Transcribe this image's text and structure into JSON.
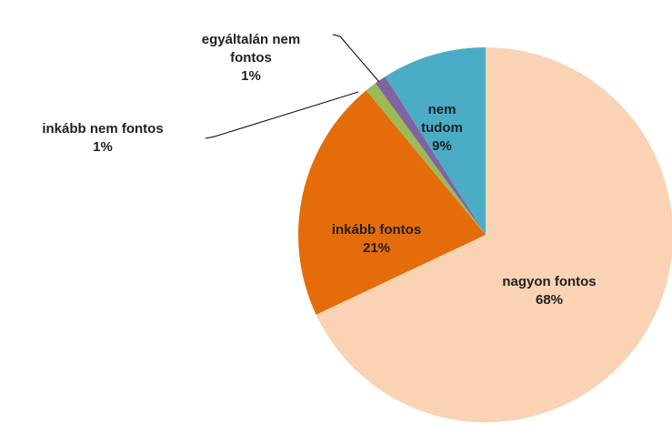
{
  "chart_data": {
    "type": "pie",
    "categories": [
      "nagyon fontos",
      "inkább fontos",
      "inkább nem fontos",
      "egyáltalán nem fontos",
      "nem tudom"
    ],
    "values": [
      68,
      21,
      1,
      1,
      9
    ],
    "value_labels": [
      "68%",
      "21%",
      "1%",
      "1%",
      "9%"
    ],
    "colors": [
      "#fad3b4",
      "#e46c0a",
      "#9bbb59",
      "#8064a2",
      "#4bacc6"
    ]
  }
}
